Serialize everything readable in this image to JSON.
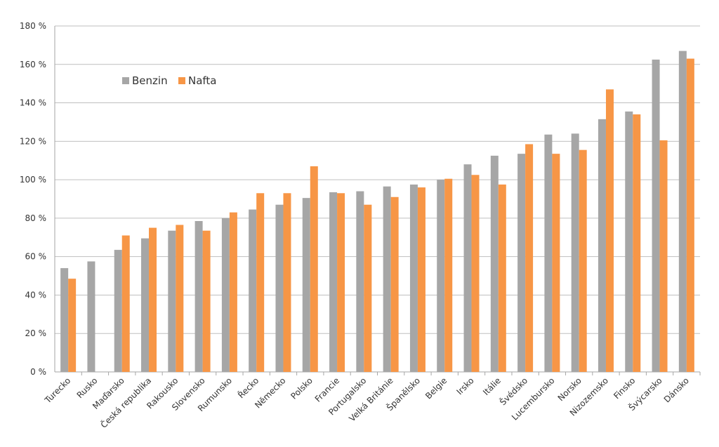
{
  "chart_data": {
    "type": "bar",
    "title": "",
    "xlabel": "",
    "ylabel": "",
    "ylim": [
      0,
      180
    ],
    "yticks": [
      0,
      20,
      40,
      60,
      80,
      100,
      120,
      140,
      160,
      180
    ],
    "ytick_suffix": " %",
    "grid": "horizontal",
    "legend_position": "top-left",
    "categories": [
      "Turecko",
      "Rusko",
      "Maďarsko",
      "Česká republika",
      "Rakousko",
      "Slovensko",
      "Rumunsko",
      "Řecko",
      "Německo",
      "Polsko",
      "Francie",
      "Portugalsko",
      "Velká Británie",
      "Španělsko",
      "Belgie",
      "Irsko",
      "Itálie",
      "Švédsko",
      "Lucembursko",
      "Norsko",
      "Nizozemsko",
      "Finsko",
      "Švýcarsko",
      "Dánsko"
    ],
    "series": [
      {
        "name": "Benzin",
        "color": "#a6a6a6",
        "values": [
          54,
          57.5,
          63.5,
          69.5,
          73.5,
          78.5,
          80,
          84.5,
          87,
          90.5,
          93.5,
          94,
          96.5,
          97.5,
          100,
          108,
          112.5,
          113.5,
          123.5,
          124,
          131.5,
          135.5,
          162.5,
          167
        ]
      },
      {
        "name": "Nafta",
        "color": "#f79646",
        "values": [
          48.5,
          null,
          71,
          75,
          76.5,
          73.5,
          83,
          93,
          93,
          107,
          93,
          87,
          91,
          96,
          100.5,
          102.5,
          97.5,
          118.5,
          113.5,
          115.5,
          147,
          134,
          120.5,
          163
        ]
      }
    ]
  }
}
